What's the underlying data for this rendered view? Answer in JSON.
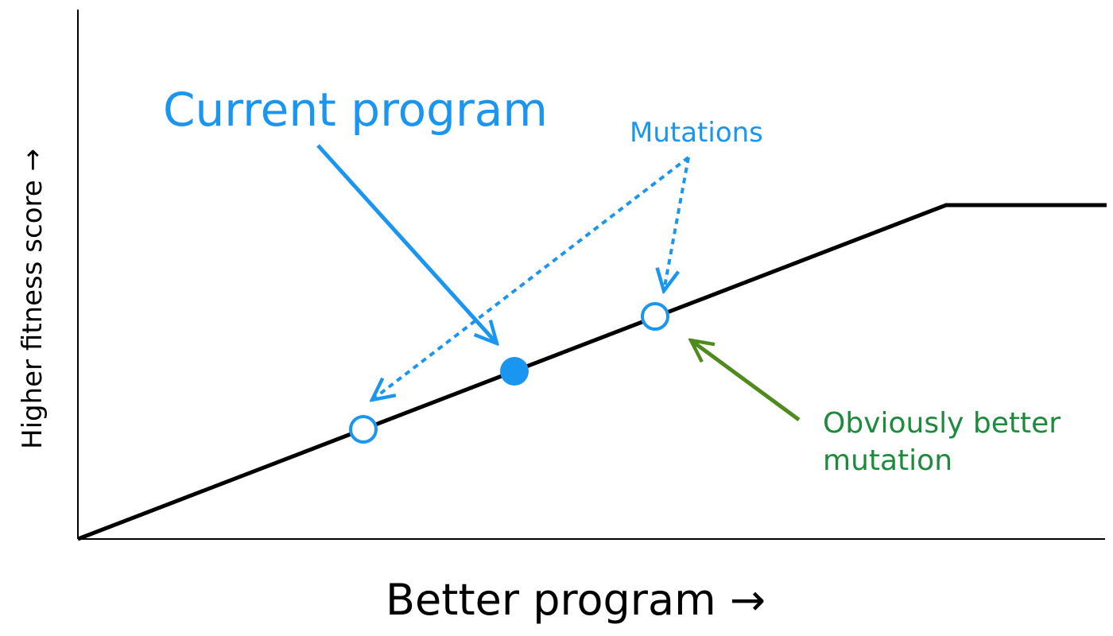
{
  "labels": {
    "current_program": "Current program",
    "mutations": "Mutations",
    "obviously_better_line1": "Obviously better",
    "obviously_better_line2": "mutation",
    "x_axis": "Better program →",
    "y_axis": "Higher fitness score →"
  },
  "colors": {
    "blue": "#1a96f0",
    "green": "#1e8a3c",
    "arrow_green": "#4f8a1e",
    "line": "#000000"
  }
}
